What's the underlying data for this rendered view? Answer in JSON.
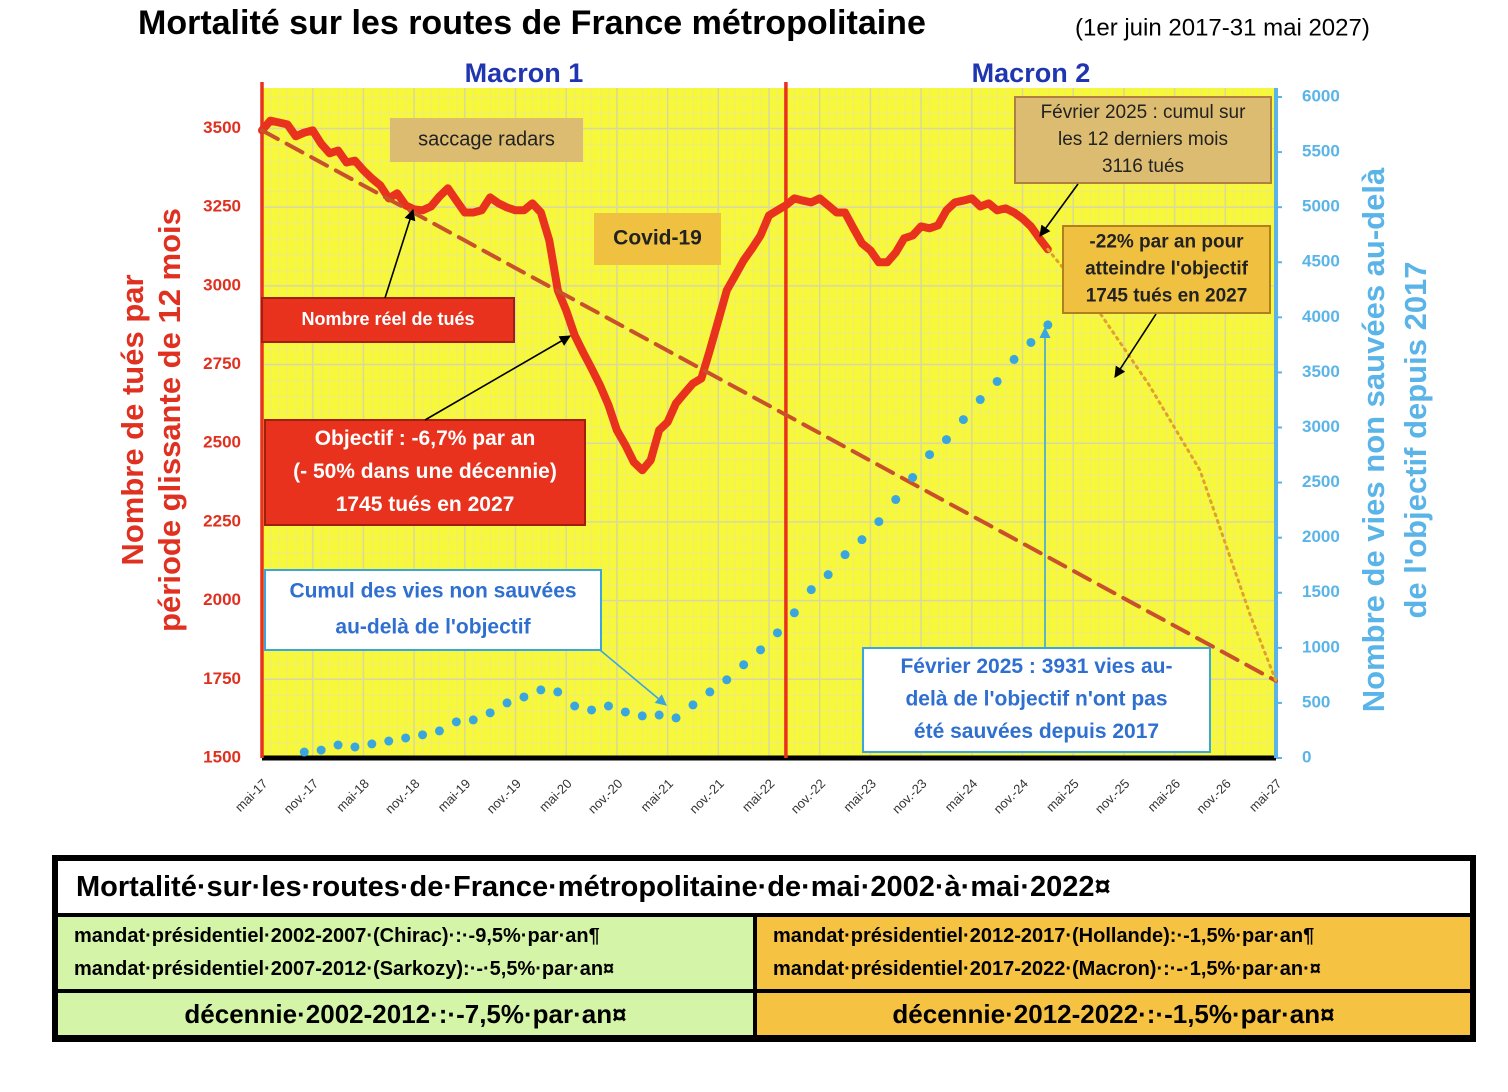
{
  "chart_data": {
    "type": "line",
    "title": "Mortalité sur les routes de France métropolitaine",
    "subtitle": "(1er juin 2017-31 mai 2027)",
    "ylabel": [
      "Nombre de tués par",
      "période glissante de 12 mois"
    ],
    "y2label": [
      "Nombre de vies non sauvées  au-delà",
      "de l'objectif depuis 2017"
    ],
    "xlim": [
      0,
      120
    ],
    "xticks": [
      {
        "value": 0,
        "label": "mai-17"
      },
      {
        "value": 6,
        "label": "nov.-17"
      },
      {
        "value": 12,
        "label": "mai-18"
      },
      {
        "value": 18,
        "label": "nov.-18"
      },
      {
        "value": 24,
        "label": "mai-19"
      },
      {
        "value": 30,
        "label": "nov.-19"
      },
      {
        "value": 36,
        "label": "mai-20"
      },
      {
        "value": 42,
        "label": "nov.-20"
      },
      {
        "value": 48,
        "label": "mai-21"
      },
      {
        "value": 54,
        "label": "nov.-21"
      },
      {
        "value": 60,
        "label": "mai-22"
      },
      {
        "value": 66,
        "label": "nov.-22"
      },
      {
        "value": 72,
        "label": "mai-23"
      },
      {
        "value": 78,
        "label": "nov.-23"
      },
      {
        "value": 84,
        "label": "mai-24"
      },
      {
        "value": 90,
        "label": "nov.-24"
      },
      {
        "value": 96,
        "label": "mai-25"
      },
      {
        "value": 102,
        "label": "nov.-25"
      },
      {
        "value": 108,
        "label": "mai-26"
      },
      {
        "value": 114,
        "label": "nov.-26"
      },
      {
        "value": 120,
        "label": "mai-27"
      }
    ],
    "ylim": [
      1500,
      3600
    ],
    "yticks": [
      1500,
      1750,
      2000,
      2250,
      2500,
      2750,
      3000,
      3250,
      3500
    ],
    "y2lim": [
      0,
      6000
    ],
    "y2ticks": [
      0,
      500,
      1000,
      1500,
      2000,
      2500,
      3000,
      3500,
      4000,
      4500,
      5000,
      5500,
      6000
    ],
    "grid": true,
    "terms": [
      {
        "label": "Macron 1",
        "start": 0,
        "end": 62
      },
      {
        "label": "Macron 2",
        "start": 62,
        "end": 120
      }
    ],
    "series": [
      {
        "color": "#e8321e",
        "style": "solid",
        "x": [
          0,
          1,
          2,
          3,
          4,
          5,
          6,
          7,
          8,
          9,
          10,
          11,
          12,
          13,
          14,
          15,
          16,
          17,
          18,
          19,
          20,
          21,
          22,
          23,
          24,
          25,
          26,
          27,
          28,
          29,
          30,
          31,
          32,
          33,
          34,
          35,
          36,
          37,
          38,
          39,
          40,
          41,
          42,
          43,
          44,
          45,
          46,
          47,
          48,
          49,
          50,
          51,
          52,
          53,
          54,
          55,
          56,
          57,
          58,
          59,
          60,
          61,
          62,
          63,
          64,
          65,
          66,
          67,
          68,
          69,
          70,
          71,
          72,
          73,
          74,
          75,
          76,
          77,
          78,
          79,
          80,
          81,
          82,
          83,
          84,
          85,
          86,
          87,
          88,
          89,
          90,
          91,
          92,
          93
        ],
        "values": [
          3494,
          3525,
          3519,
          3513,
          3475,
          3487,
          3494,
          3452,
          3421,
          3430,
          3392,
          3398,
          3367,
          3341,
          3319,
          3278,
          3294,
          3256,
          3243,
          3240,
          3252,
          3284,
          3310,
          3271,
          3233,
          3233,
          3240,
          3281,
          3262,
          3249,
          3240,
          3240,
          3262,
          3233,
          3144,
          2986,
          2922,
          2843,
          2789,
          2738,
          2684,
          2621,
          2541,
          2494,
          2440,
          2414,
          2446,
          2541,
          2567,
          2627,
          2659,
          2690,
          2706,
          2795,
          2890,
          2986,
          3033,
          3081,
          3119,
          3160,
          3224,
          3240,
          3256,
          3278,
          3271,
          3265,
          3278,
          3256,
          3233,
          3233,
          3183,
          3135,
          3113,
          3075,
          3075,
          3106,
          3151,
          3160,
          3189,
          3183,
          3192,
          3240,
          3265,
          3271,
          3278,
          3252,
          3262,
          3240,
          3246,
          3233,
          3214,
          3189,
          3151,
          3116
        ]
      },
      {
        "color": "#c8502a",
        "style": "dashed",
        "x": [
          0,
          120
        ],
        "values": [
          3494,
          1745
        ]
      },
      {
        "color": "#e0a030",
        "style": "dotted",
        "x": [
          93,
          99,
          105,
          111,
          117,
          120
        ],
        "values": [
          3116,
          2920,
          2684,
          2414,
          1950,
          1745
        ]
      },
      {
        "color": "#3aa6e0",
        "style": "dots",
        "axis": "y2",
        "x": [
          5,
          7,
          9,
          11,
          13,
          15,
          17,
          19,
          21,
          23,
          25,
          27,
          29,
          31,
          33,
          35,
          37,
          39,
          41,
          43,
          45,
          47,
          49,
          51,
          53,
          55,
          57,
          59,
          61,
          63,
          65,
          67,
          69,
          71,
          73,
          75,
          77,
          79,
          81,
          83,
          85,
          87,
          89,
          91,
          93
        ],
        "values": [
          54,
          72,
          118,
          100,
          128,
          154,
          182,
          210,
          246,
          328,
          346,
          410,
          500,
          554,
          618,
          600,
          472,
          436,
          472,
          418,
          382,
          390,
          364,
          482,
          600,
          710,
          846,
          982,
          1136,
          1318,
          1528,
          1664,
          1846,
          1982,
          2146,
          2346,
          2546,
          2754,
          2890,
          3072,
          3254,
          3418,
          3618,
          3772,
          3931
        ]
      }
    ],
    "annotations": [
      {
        "lines": [
          "saccage radars"
        ]
      },
      {
        "lines": [
          "Covid-19"
        ]
      },
      {
        "lines": [
          "Nombre réel de tués"
        ]
      },
      {
        "lines": [
          "Objectif : -6,7% par an",
          "(- 50% dans une décennie)",
          "1745 tués en 2027"
        ]
      },
      {
        "lines": [
          "Cumul des vies non sauvées",
          "au-delà de l'objectif"
        ]
      },
      {
        "lines": [
          "Février 2025 : cumul sur",
          "les 12 derniers mois",
          "3116 tués"
        ]
      },
      {
        "lines": [
          "-22% par an pour",
          "atteindre l'objectif",
          "1745 tués en 2027"
        ]
      },
      {
        "lines": [
          "Février 2025 : 3931 vies au-",
          "delà de l'objectif n'ont pas",
          "été sauvées depuis 2017"
        ]
      }
    ]
  },
  "table": {
    "title": "Mortalité·sur·les·routes·de·France·métropolitaine·de·mai·2002·à·mai·2022¤",
    "rows": [
      [
        [
          "mandat·présidentiel·2002-2007·(Chirac)·:·-9,5%·par·an¶",
          "mandat·présidentiel·2007-2012·(Sarkozy):·-·5,5%·par·an¤"
        ],
        [
          "mandat·présidentiel·2012-2017·(Hollande):·-1,5%·par·an¶",
          "mandat·présidentiel·2017-2022·(Macron)·:·-·1,5%·par·an·¤"
        ]
      ],
      [
        [
          "décennie·2002-2012·:·-7,5%·par·an¤"
        ],
        [
          "décennie·2012-2022·:·-1,5%·par·an¤"
        ]
      ]
    ]
  }
}
